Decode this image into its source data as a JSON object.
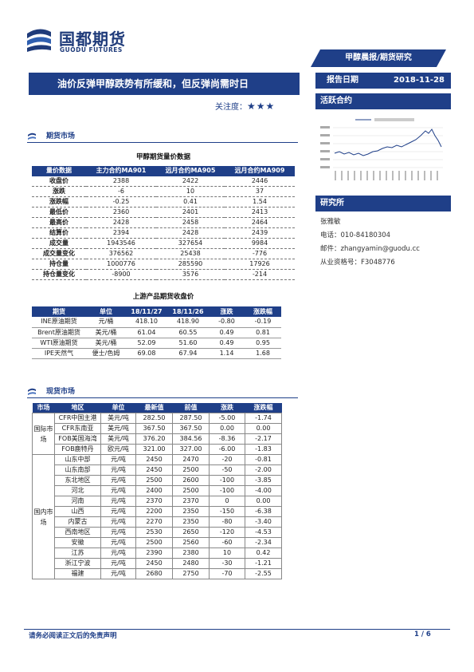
{
  "brand": {
    "name_cn": "国都期货",
    "name_en": "GUODU FUTURES",
    "color": "#1f3f88"
  },
  "top_tag": "甲醇晨报/期货研究",
  "headline": "油价反弹甲醇跌势有所缓和，但反弹尚需时日",
  "attention": {
    "label": "关注度：",
    "stars": "★★★"
  },
  "report_date": {
    "label": "报告日期",
    "value": "2018-11-28"
  },
  "active_contract": "活跃合约",
  "research": {
    "title": "研究所",
    "lines": [
      "张雅敏",
      "电话：010-84180304",
      "邮件：zhangyamin@guodu.cc",
      "从业资格号：F3048776"
    ]
  },
  "sections": {
    "futures": "期货市场",
    "spot": "现货市场"
  },
  "futures_table": {
    "title": "甲醇期货量价数据",
    "headers": [
      "量价数据",
      "主力合约MA901",
      "远月合约MA905",
      "远月合约MA909"
    ],
    "rows": [
      [
        "收盘价",
        "2388",
        "2422",
        "2446"
      ],
      [
        "涨跌",
        "-6",
        "10",
        "37"
      ],
      [
        "涨跌幅",
        "-0.25",
        "0.41",
        "1.54"
      ],
      [
        "最低价",
        "2360",
        "2401",
        "2413"
      ],
      [
        "最高价",
        "2428",
        "2458",
        "2464"
      ],
      [
        "结算价",
        "2394",
        "2428",
        "2439"
      ],
      [
        "成交量",
        "1943546",
        "327654",
        "9984"
      ],
      [
        "成交量变化",
        "376562",
        "25438",
        "-776"
      ],
      [
        "持仓量",
        "1000776",
        "285590",
        "17926"
      ],
      [
        "持仓量变化",
        "-8900",
        "3576",
        "-214"
      ]
    ]
  },
  "upstream_table": {
    "title": "上游产品期货收盘价",
    "headers": [
      "期货",
      "单位",
      "18/11/27",
      "18/11/26",
      "涨跌",
      "涨跌幅"
    ],
    "rows": [
      [
        "INE原油期货",
        "元/桶",
        "418.10",
        "418.90",
        "-0.80",
        "-0.19"
      ],
      [
        "Brent原油期货",
        "美元/桶",
        "61.04",
        "60.55",
        "0.49",
        "0.81"
      ],
      [
        "WTI原油期货",
        "美元/桶",
        "52.09",
        "51.60",
        "0.49",
        "0.95"
      ],
      [
        "IPE天然气",
        "便士/色姆",
        "69.08",
        "67.94",
        "1.14",
        "1.68"
      ]
    ]
  },
  "spot_table": {
    "headers": [
      "市场",
      "地区",
      "单位",
      "最新值",
      "前值",
      "涨跌",
      "涨跌幅"
    ],
    "intl_label": "国际市场",
    "domestic_label": "国内市场",
    "intl_rows": [
      [
        "CFR中国主港",
        "美元/吨",
        "282.50",
        "287.50",
        "-5.00",
        "-1.74"
      ],
      [
        "CFR东南亚",
        "美元/吨",
        "367.50",
        "367.50",
        "0.00",
        "0.00"
      ],
      [
        "FOB美国海湾",
        "美元/吨",
        "376.20",
        "384.56",
        "-8.36",
        "-2.17"
      ],
      [
        "FOB鹿特丹",
        "欧元/吨",
        "321.00",
        "327.00",
        "-6.00",
        "-1.83"
      ]
    ],
    "domestic_rows": [
      [
        "山东中部",
        "元/吨",
        "2450",
        "2470",
        "-20",
        "-0.81"
      ],
      [
        "山东南部",
        "元/吨",
        "2450",
        "2500",
        "-50",
        "-2.00"
      ],
      [
        "东北地区",
        "元/吨",
        "2500",
        "2600",
        "-100",
        "-3.85"
      ],
      [
        "河北",
        "元/吨",
        "2400",
        "2500",
        "-100",
        "-4.00"
      ],
      [
        "河南",
        "元/吨",
        "2370",
        "2370",
        "0",
        "0.00"
      ],
      [
        "山西",
        "元/吨",
        "2200",
        "2350",
        "-150",
        "-6.38"
      ],
      [
        "内蒙古",
        "元/吨",
        "2270",
        "2350",
        "-80",
        "-3.40"
      ],
      [
        "西南地区",
        "元/吨",
        "2530",
        "2650",
        "-120",
        "-4.53"
      ],
      [
        "安徽",
        "元/吨",
        "2500",
        "2560",
        "-60",
        "-2.34"
      ],
      [
        "江苏",
        "元/吨",
        "2390",
        "2380",
        "10",
        "0.42"
      ],
      [
        "浙江宁波",
        "元/吨",
        "2450",
        "2480",
        "-30",
        "-1.21"
      ],
      [
        "福建",
        "元/吨",
        "2680",
        "2750",
        "-70",
        "-2.55"
      ]
    ]
  },
  "footer": {
    "disclaimer": "请务必阅读正文后的免责声明",
    "page": "1 / 6"
  }
}
